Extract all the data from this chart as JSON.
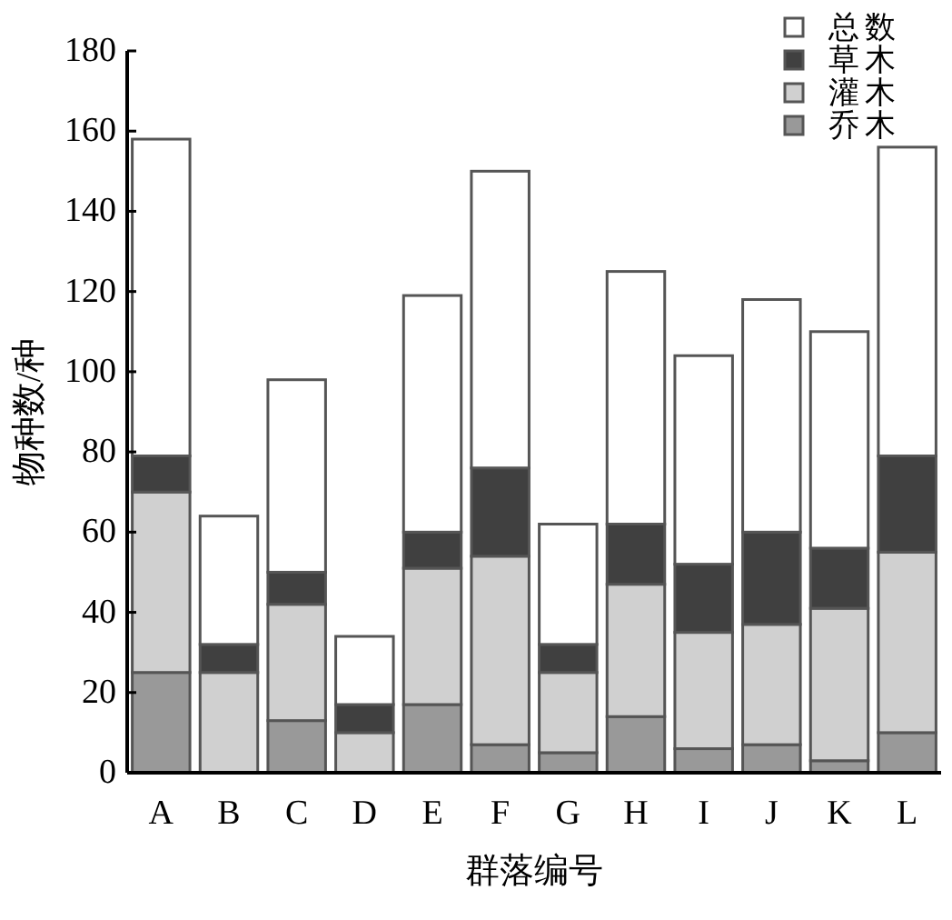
{
  "chart_data": {
    "type": "bar",
    "stacked": true,
    "xlabel": "群落编号",
    "ylabel": "物种数/种",
    "categories": [
      "A",
      "B",
      "C",
      "D",
      "E",
      "F",
      "G",
      "H",
      "I",
      "J",
      "K",
      "L"
    ],
    "series": [
      {
        "name": "乔木",
        "color": "#999999",
        "values": [
          25,
          0,
          13,
          0,
          17,
          7,
          5,
          14,
          6,
          7,
          3,
          10
        ]
      },
      {
        "name": "灌木",
        "color": "#d0d0d0",
        "values": [
          45,
          25,
          29,
          10,
          34,
          47,
          20,
          33,
          29,
          30,
          38,
          45
        ]
      },
      {
        "name": "草木",
        "color": "#404040",
        "values": [
          9,
          7,
          8,
          7,
          9,
          22,
          7,
          15,
          17,
          23,
          15,
          24
        ]
      },
      {
        "name": "总数",
        "color": "#ffffff",
        "values": [
          79,
          32,
          48,
          17,
          59,
          74,
          30,
          63,
          52,
          58,
          54,
          77
        ]
      }
    ],
    "ylim": [
      0,
      180
    ],
    "yticks": [
      0,
      20,
      40,
      60,
      80,
      100,
      120,
      140,
      160,
      180
    ],
    "legend": "top right"
  }
}
